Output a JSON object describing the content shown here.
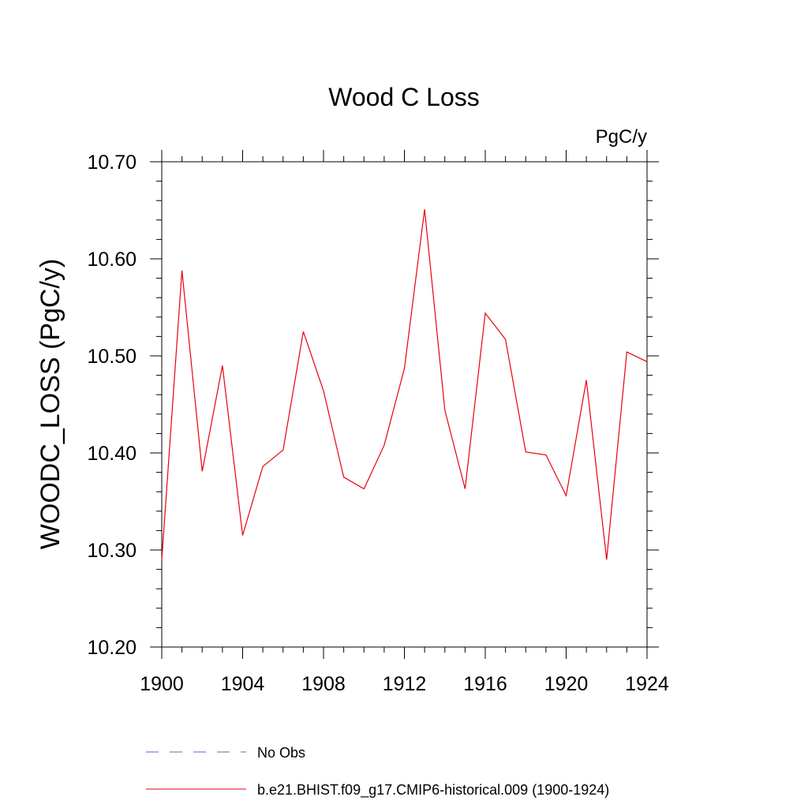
{
  "chart_data": {
    "type": "line",
    "title": "Wood C Loss",
    "units_label": "PgC/y",
    "ylabel": "WOODC_LOSS  (PgC/y)",
    "xlabel": "",
    "xlim": [
      1900,
      1924
    ],
    "ylim": [
      10.2,
      10.7
    ],
    "x_ticks": [
      1900,
      1904,
      1908,
      1912,
      1916,
      1920,
      1924
    ],
    "y_ticks": [
      "10.20",
      "10.30",
      "10.40",
      "10.50",
      "10.60",
      "10.70"
    ],
    "y_tick_values": [
      10.2,
      10.3,
      10.4,
      10.5,
      10.6,
      10.7
    ],
    "grid": false,
    "legend_position": "bottom",
    "series": [
      {
        "name": "b.e21.BHIST.f09_g17.CMIP6-historical.009 (1900-1924)",
        "color": "#e8000b",
        "style": "solid",
        "x": [
          1900,
          1901,
          1902,
          1903,
          1904,
          1905,
          1906,
          1907,
          1908,
          1909,
          1910,
          1911,
          1912,
          1913,
          1914,
          1915,
          1916,
          1917,
          1918,
          1919,
          1920,
          1921,
          1922,
          1923,
          1924
        ],
        "y": [
          10.29,
          10.588,
          10.381,
          10.49,
          10.315,
          10.386,
          10.403,
          10.525,
          10.464,
          10.375,
          10.363,
          10.408,
          10.487,
          10.651,
          10.444,
          10.363,
          10.544,
          10.517,
          10.401,
          10.398,
          10.356,
          10.475,
          10.29,
          10.504,
          10.494
        ]
      }
    ],
    "legend": [
      {
        "label": "No Obs",
        "color": "#6666cc",
        "style": "dashed"
      },
      {
        "label": "b.e21.BHIST.f09_g17.CMIP6-historical.009 (1900-1924)",
        "color": "#e8000b",
        "style": "solid"
      }
    ]
  }
}
